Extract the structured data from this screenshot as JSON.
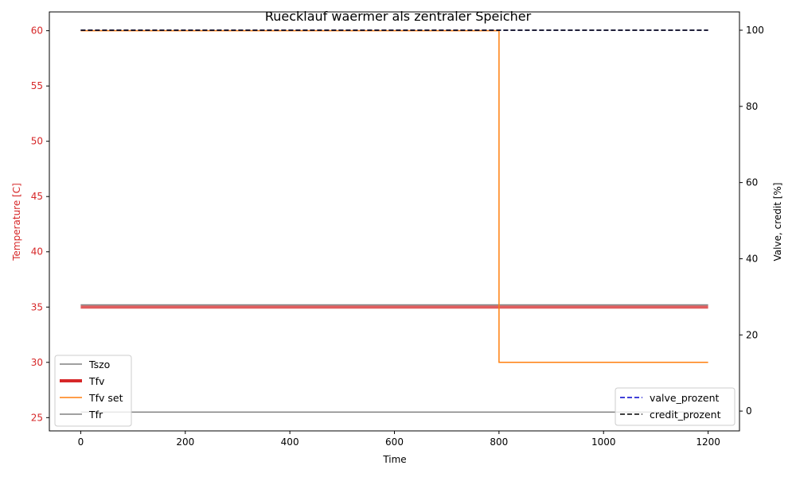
{
  "chart_data": {
    "type": "line",
    "title": "Ruecklauf waermer als zentraler Speicher",
    "xlabel": "Time",
    "ylabel_left": "Temperature [C]",
    "ylabel_right": "Valve, credit [%]",
    "xlim": [
      -60,
      1260
    ],
    "ylim_left": [
      23.8,
      61.7
    ],
    "ylim_right": [
      -5.2,
      104.8
    ],
    "xticks": [
      0,
      200,
      400,
      600,
      800,
      1000,
      1200
    ],
    "yticks_left": [
      25,
      30,
      35,
      40,
      45,
      50,
      55,
      60
    ],
    "yticks_right": [
      0,
      20,
      40,
      60,
      80,
      100
    ],
    "grid": false,
    "colors": {
      "left_axis": "#d62728",
      "right_axis": "#000000"
    },
    "legend_left": {
      "placement": "lower left",
      "entries": [
        "Tszo",
        "Tfv",
        "Tfv set",
        "Tfr"
      ]
    },
    "legend_right": {
      "placement": "lower right",
      "entries": [
        "valve_prozent",
        "credit_prozent"
      ]
    },
    "series_left": [
      {
        "name": "Tszo",
        "color": "#808080",
        "width": 1.5,
        "dash": "",
        "x": [
          0,
          1200
        ],
        "y": [
          35.2,
          35.2
        ]
      },
      {
        "name": "Tfv",
        "color": "#d62728",
        "width": 4,
        "dash": "",
        "opacity": 0.75,
        "x": [
          0,
          1200
        ],
        "y": [
          35.0,
          35.0
        ]
      },
      {
        "name": "Tfv set",
        "color": "#ff7f0e",
        "width": 1.5,
        "dash": "",
        "x": [
          0,
          800,
          800,
          1200
        ],
        "y": [
          60,
          60,
          30,
          30
        ]
      },
      {
        "name": "Tfr",
        "color": "#808080",
        "width": 1.5,
        "dash": "",
        "x": [
          0,
          1200
        ],
        "y": [
          25.5,
          25.5
        ]
      }
    ],
    "series_right": [
      {
        "name": "valve_prozent",
        "color": "#0000cc",
        "width": 1.5,
        "dash": "6,3",
        "x": [
          0,
          1200
        ],
        "y": [
          100,
          100
        ]
      },
      {
        "name": "credit_prozent",
        "color": "#000000",
        "width": 1.5,
        "dash": "6,3",
        "x": [
          0,
          1200
        ],
        "y": [
          100,
          100
        ]
      }
    ]
  }
}
